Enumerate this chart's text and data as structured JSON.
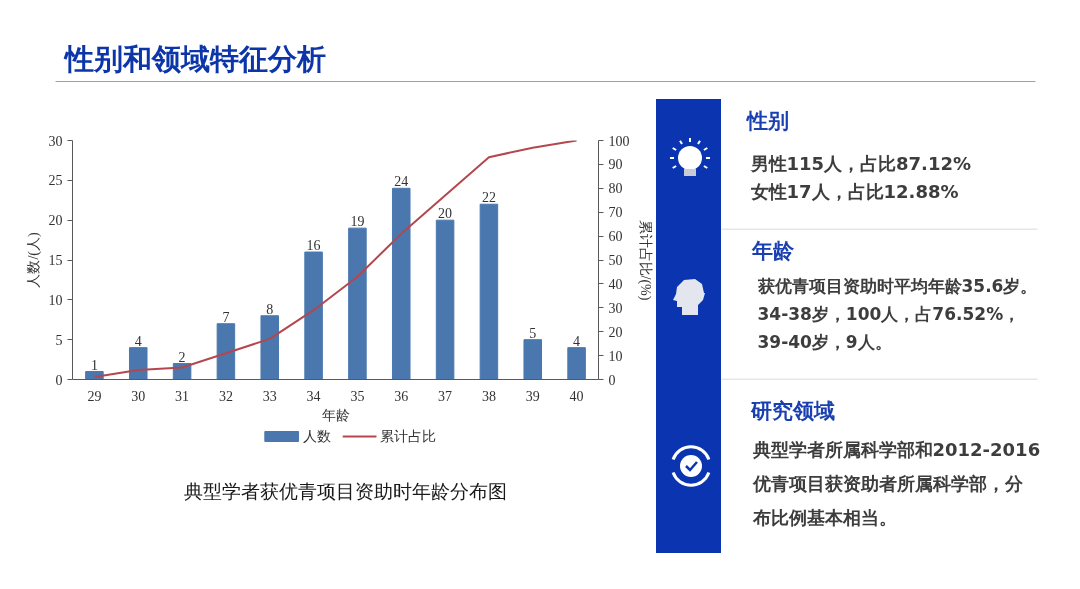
{
  "chart_data": [
    {
      "type": "bar",
      "title": "性别和领域特征分析",
      "xlabel": "年龄",
      "ylabel": "人数/(人)",
      "y2label": "累计占比/(%)",
      "categories": [
        "29",
        "30",
        "31",
        "32",
        "33",
        "34",
        "35",
        "36",
        "37",
        "38",
        "39",
        "40"
      ],
      "series": [
        {
          "name": "人数",
          "color": "#4a78ae",
          "values": [
            1,
            4,
            2,
            7,
            8,
            16,
            19,
            24,
            20,
            22,
            5,
            4
          ],
          "value_labels": [
            "1",
            "4",
            "2",
            "7",
            "8",
            "16",
            "19",
            "24",
            "20",
            "22",
            "5",
            "4"
          ]
        },
        {
          "name": "累计占比",
          "type": "line",
          "axis": "y2",
          "color": "#b4474e",
          "values": [
            1,
            4,
            5,
            11,
            17,
            29,
            43,
            61,
            77,
            93,
            97,
            100
          ]
        }
      ],
      "ylim": [
        0,
        30
      ],
      "yticks": [
        0,
        5,
        10,
        15,
        20,
        25,
        30
      ],
      "y2lim": [
        0,
        100
      ],
      "y2ticks": [
        0,
        10,
        20,
        30,
        40,
        50,
        60,
        70,
        80,
        90,
        100
      ],
      "legend": "bottom",
      "annotations": [
        "典型学者获优青项目资助时年龄分布图"
      ]
    },
    {
      "type": "other",
      "title": "性别",
      "annotations": [
        "男性115人，占比87.12%",
        "女性17人，占比12.88%"
      ]
    },
    {
      "type": "other",
      "title": "年龄",
      "annotations": [
        "获优青项目资助时平均年龄35.6岁。",
        "34-38岁，100人，占76.52%，",
        "39-40岁，9人。"
      ]
    },
    {
      "type": "other",
      "title": "研究领域",
      "annotations": [
        "典型学者所属科学部和2012-2016",
        "优青项目获资助者所属科学部，分",
        "布比例基本相当。"
      ]
    }
  ]
}
